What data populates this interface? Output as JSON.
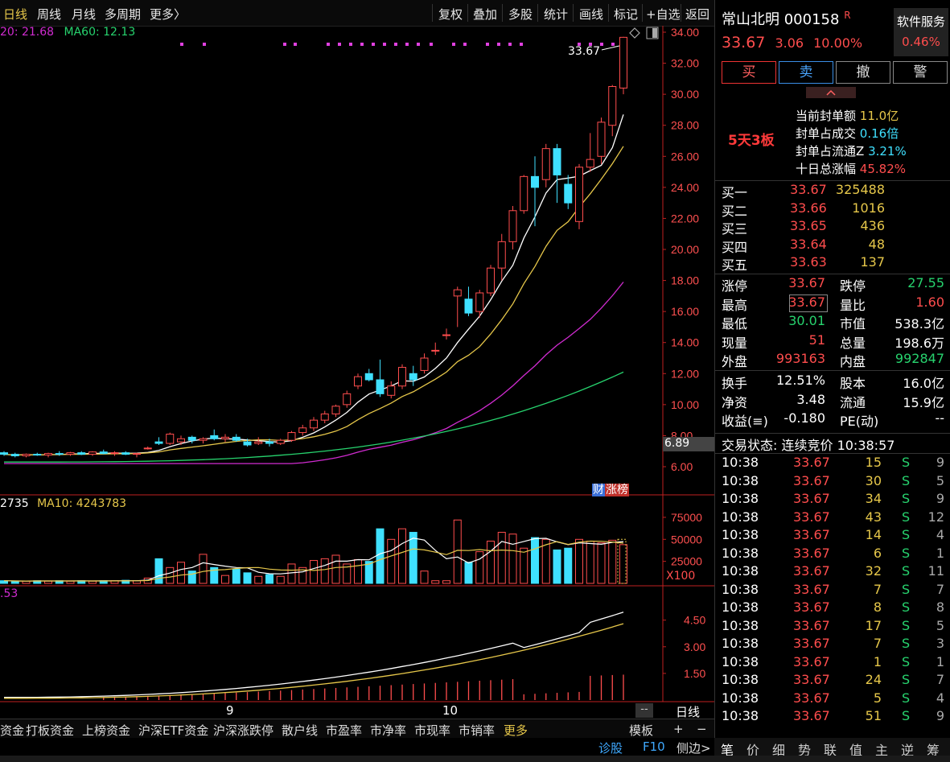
{
  "topbar": {
    "left_tabs": [
      "日线",
      "周线",
      "月线",
      "多周期",
      "更多〉"
    ],
    "right_tabs": [
      "复权",
      "叠加",
      "多股",
      "统计",
      "画线",
      "标记",
      "+自选",
      "返回"
    ]
  },
  "main": {
    "ma_legend": {
      "ma20": "20: 21.68",
      "ma60": "MA60: 12.13"
    },
    "price_ticks": [
      "34.00",
      "32.00",
      "30.00",
      "28.00",
      "26.00",
      "24.00",
      "22.00",
      "20.00",
      "18.00",
      "16.00",
      "14.00",
      "12.00",
      "10.00",
      "8.00",
      "6.00"
    ],
    "current_price_tag": "6.89",
    "last_price_annotation": "33.67",
    "badge_cai": "财",
    "badge_zhangbang": "涨榜"
  },
  "volume_panel": {
    "legend": {
      "vol": "2735",
      "ma10": "MA10: 4243783"
    },
    "ticks": [
      "75000",
      "50000",
      "25000"
    ],
    "unit": "X100"
  },
  "indicator_panel": {
    "legend": ".53",
    "ticks": [
      "4.50",
      "3.00",
      "1.50"
    ]
  },
  "x_axis": {
    "labels": [
      "9",
      "10"
    ],
    "period_button": "日线",
    "dash_button": "--"
  },
  "bottombar": {
    "items": [
      "资金",
      "打板资金",
      "上榜资金",
      "沪深ETF资金",
      "沪深涨跌停",
      "散户线",
      "市盈率",
      "市净率",
      "市现率",
      "市销率",
      "更多"
    ],
    "template_label": "模板",
    "plus": "+",
    "minus": "−"
  },
  "statusbar": {
    "diagnose": "诊股",
    "f10": "F10",
    "side": "侧边>"
  },
  "stock": {
    "name": "常山北明",
    "code": "000158",
    "r_mark": "R",
    "price": "33.67",
    "change": "3.06",
    "change_pct": "10.00%",
    "service_label": "软件服务",
    "service_pct": "0.46%"
  },
  "trade_buttons": {
    "buy": "买",
    "sell": "卖",
    "cancel": "撤",
    "alert": "警"
  },
  "limit_info": {
    "streak": "5天3板",
    "rows": [
      {
        "label": "当前封单额",
        "value": "11.0亿"
      },
      {
        "label": "封单占成交",
        "value": "0.16倍"
      },
      {
        "label": "封单占流通Z",
        "value": "3.21%"
      },
      {
        "label": "十日总涨幅",
        "value": "45.82%"
      }
    ]
  },
  "bids": [
    {
      "label": "买一",
      "price": "33.67",
      "vol": "325488"
    },
    {
      "label": "买二",
      "price": "33.66",
      "vol": "1016"
    },
    {
      "label": "买三",
      "price": "33.65",
      "vol": "436"
    },
    {
      "label": "买四",
      "price": "33.64",
      "vol": "48"
    },
    {
      "label": "买五",
      "price": "33.63",
      "vol": "137"
    }
  ],
  "stats": [
    {
      "l1": "涨停",
      "v1": "33.67",
      "l2": "跌停",
      "v2": "27.55"
    },
    {
      "l1": "最高",
      "v1": "33.67",
      "l2": "量比",
      "v2": "1.60"
    },
    {
      "l1": "最低",
      "v1": "30.01",
      "l2": "市值",
      "v2": "538.3亿"
    },
    {
      "l1": "现量",
      "v1": "51",
      "l2": "总量",
      "v2": "198.6万"
    },
    {
      "l1": "外盘",
      "v1": "993163",
      "l2": "内盘",
      "v2": "992847"
    }
  ],
  "fundamentals": [
    {
      "l1": "换手",
      "v1": "12.51%",
      "l2": "股本",
      "v2": "16.0亿"
    },
    {
      "l1": "净资",
      "v1": "3.48",
      "l2": "流通",
      "v2": "15.9亿"
    },
    {
      "l1": "收益(≡)",
      "v1": "-0.180",
      "l2": "PE(动)",
      "v2": "--"
    }
  ],
  "trade_status": "交易状态: 连续竞价 10:38:57",
  "ticks": [
    {
      "t": "10:38",
      "p": "33.67",
      "v": "15",
      "s": "S",
      "n": "9"
    },
    {
      "t": "10:38",
      "p": "33.67",
      "v": "30",
      "s": "S",
      "n": "5"
    },
    {
      "t": "10:38",
      "p": "33.67",
      "v": "34",
      "s": "S",
      "n": "9"
    },
    {
      "t": "10:38",
      "p": "33.67",
      "v": "43",
      "s": "S",
      "n": "12"
    },
    {
      "t": "10:38",
      "p": "33.67",
      "v": "14",
      "s": "S",
      "n": "4"
    },
    {
      "t": "10:38",
      "p": "33.67",
      "v": "6",
      "s": "S",
      "n": "1"
    },
    {
      "t": "10:38",
      "p": "33.67",
      "v": "32",
      "s": "S",
      "n": "11"
    },
    {
      "t": "10:38",
      "p": "33.67",
      "v": "7",
      "s": "S",
      "n": "7"
    },
    {
      "t": "10:38",
      "p": "33.67",
      "v": "8",
      "s": "S",
      "n": "8"
    },
    {
      "t": "10:38",
      "p": "33.67",
      "v": "17",
      "s": "S",
      "n": "5"
    },
    {
      "t": "10:38",
      "p": "33.67",
      "v": "7",
      "s": "S",
      "n": "3"
    },
    {
      "t": "10:38",
      "p": "33.67",
      "v": "1",
      "s": "S",
      "n": "1"
    },
    {
      "t": "10:38",
      "p": "33.67",
      "v": "24",
      "s": "S",
      "n": "7"
    },
    {
      "t": "10:38",
      "p": "33.67",
      "v": "5",
      "s": "S",
      "n": "4"
    },
    {
      "t": "10:38",
      "p": "33.67",
      "v": "51",
      "s": "S",
      "n": "9"
    }
  ],
  "right_tabs": [
    "笔",
    "价",
    "细",
    "势",
    "联",
    "值",
    "主",
    "逆",
    "筹"
  ],
  "colors": {
    "up": "#ff4d4d",
    "down": "#3fe0ff",
    "ma5": "#ffffff",
    "ma10": "#e6c74a",
    "ma20": "#d02bd0",
    "ma60": "#27d36e"
  },
  "chart_data": {
    "type": "candlestick",
    "ylim": [
      6,
      34
    ],
    "candles": [
      {
        "o": 6.9,
        "h": 7.0,
        "l": 6.7,
        "c": 6.8
      },
      {
        "o": 6.8,
        "h": 6.9,
        "l": 6.6,
        "c": 6.7
      },
      {
        "o": 6.7,
        "h": 6.85,
        "l": 6.6,
        "c": 6.8
      },
      {
        "o": 6.8,
        "h": 6.9,
        "l": 6.7,
        "c": 6.75
      },
      {
        "o": 6.75,
        "h": 6.9,
        "l": 6.6,
        "c": 6.85
      },
      {
        "o": 6.85,
        "h": 7.0,
        "l": 6.7,
        "c": 6.8
      },
      {
        "o": 6.8,
        "h": 6.95,
        "l": 6.7,
        "c": 6.9
      },
      {
        "o": 6.9,
        "h": 7.0,
        "l": 6.75,
        "c": 6.8
      },
      {
        "o": 6.8,
        "h": 7.0,
        "l": 6.7,
        "c": 6.95
      },
      {
        "o": 6.95,
        "h": 7.1,
        "l": 6.8,
        "c": 6.85
      },
      {
        "o": 6.85,
        "h": 7.0,
        "l": 6.7,
        "c": 6.9
      },
      {
        "o": 6.9,
        "h": 7.0,
        "l": 6.75,
        "c": 6.8
      },
      {
        "o": 6.8,
        "h": 6.9,
        "l": 6.6,
        "c": 6.85
      },
      {
        "o": 7.2,
        "h": 7.3,
        "l": 7.1,
        "c": 7.2
      },
      {
        "o": 7.6,
        "h": 7.9,
        "l": 7.4,
        "c": 7.5
      },
      {
        "o": 7.5,
        "h": 8.2,
        "l": 7.4,
        "c": 8.1
      },
      {
        "o": 7.6,
        "h": 8.0,
        "l": 7.4,
        "c": 7.8
      },
      {
        "o": 7.9,
        "h": 8.0,
        "l": 7.5,
        "c": 7.7
      },
      {
        "o": 7.7,
        "h": 7.9,
        "l": 7.5,
        "c": 7.8
      },
      {
        "o": 8.0,
        "h": 8.4,
        "l": 7.7,
        "c": 7.8
      },
      {
        "o": 7.8,
        "h": 8.1,
        "l": 7.6,
        "c": 7.9
      },
      {
        "o": 7.9,
        "h": 8.1,
        "l": 7.6,
        "c": 7.7
      },
      {
        "o": 7.6,
        "h": 7.8,
        "l": 7.3,
        "c": 7.4
      },
      {
        "o": 7.5,
        "h": 7.9,
        "l": 7.4,
        "c": 7.6
      },
      {
        "o": 7.6,
        "h": 7.8,
        "l": 7.3,
        "c": 7.5
      },
      {
        "o": 7.5,
        "h": 7.8,
        "l": 7.4,
        "c": 7.7
      },
      {
        "o": 7.7,
        "h": 8.3,
        "l": 7.6,
        "c": 8.2
      },
      {
        "o": 8.2,
        "h": 8.7,
        "l": 8.0,
        "c": 8.5
      },
      {
        "o": 8.5,
        "h": 9.2,
        "l": 8.3,
        "c": 9.0
      },
      {
        "o": 9.0,
        "h": 9.6,
        "l": 8.8,
        "c": 9.4
      },
      {
        "o": 9.4,
        "h": 10.0,
        "l": 9.2,
        "c": 9.9
      },
      {
        "o": 10.0,
        "h": 10.9,
        "l": 9.8,
        "c": 10.7
      },
      {
        "o": 11.2,
        "h": 12.0,
        "l": 11.0,
        "c": 11.8
      },
      {
        "o": 12.0,
        "h": 12.3,
        "l": 11.5,
        "c": 11.6
      },
      {
        "o": 11.6,
        "h": 12.9,
        "l": 10.5,
        "c": 10.7
      },
      {
        "o": 10.6,
        "h": 11.5,
        "l": 10.4,
        "c": 11.2
      },
      {
        "o": 11.2,
        "h": 12.6,
        "l": 11.0,
        "c": 12.4
      },
      {
        "o": 12.0,
        "h": 12.5,
        "l": 11.2,
        "c": 11.6
      },
      {
        "o": 12.2,
        "h": 13.3,
        "l": 12.0,
        "c": 13.0
      },
      {
        "o": 13.5,
        "h": 14.0,
        "l": 13.2,
        "c": 13.5
      },
      {
        "o": 14.5,
        "h": 14.9,
        "l": 14.2,
        "c": 14.5
      },
      {
        "o": 17.0,
        "h": 17.6,
        "l": 15.0,
        "c": 17.4
      },
      {
        "o": 16.8,
        "h": 17.6,
        "l": 15.7,
        "c": 15.9
      },
      {
        "o": 16.0,
        "h": 17.4,
        "l": 15.6,
        "c": 17.2
      },
      {
        "o": 17.2,
        "h": 19.0,
        "l": 17.0,
        "c": 18.8
      },
      {
        "o": 18.8,
        "h": 21.0,
        "l": 18.0,
        "c": 20.5
      },
      {
        "o": 20.5,
        "h": 22.8,
        "l": 20.0,
        "c": 22.5
      },
      {
        "o": 22.5,
        "h": 24.8,
        "l": 22.3,
        "c": 24.7
      },
      {
        "o": 24.7,
        "h": 26.0,
        "l": 21.5,
        "c": 24.0
      },
      {
        "o": 24.5,
        "h": 26.8,
        "l": 24.0,
        "c": 26.5
      },
      {
        "o": 26.5,
        "h": 26.8,
        "l": 23.0,
        "c": 24.8
      },
      {
        "o": 24.2,
        "h": 24.8,
        "l": 22.6,
        "c": 23.0
      },
      {
        "o": 21.8,
        "h": 25.5,
        "l": 21.3,
        "c": 25.3
      },
      {
        "o": 25.3,
        "h": 27.5,
        "l": 25.0,
        "c": 25.8
      },
      {
        "o": 26.0,
        "h": 28.5,
        "l": 25.5,
        "c": 28.2
      },
      {
        "o": 28.0,
        "h": 30.6,
        "l": 27.3,
        "c": 30.5
      },
      {
        "o": 30.4,
        "h": 33.7,
        "l": 30.0,
        "c": 33.67
      }
    ],
    "volume_ticks": [
      25000,
      50000,
      75000
    ],
    "indicator_ticks": [
      1.5,
      3.0,
      4.5
    ]
  }
}
